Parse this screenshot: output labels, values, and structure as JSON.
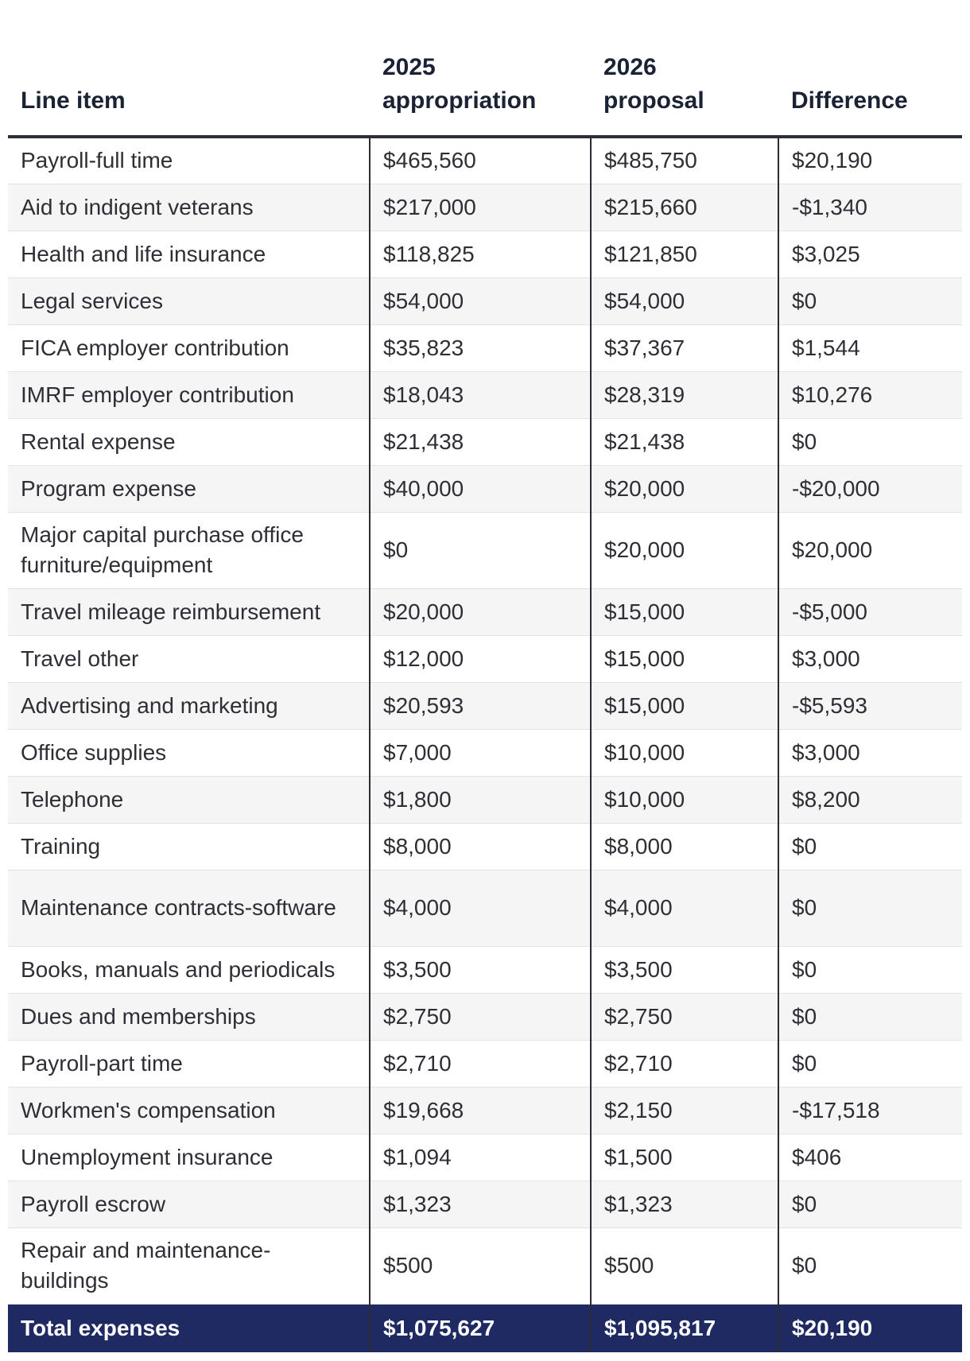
{
  "table": {
    "headers": {
      "line_item": "Line item",
      "appropriation_2025": [
        "2025",
        "appropriation"
      ],
      "proposal_2026": [
        "2026",
        "proposal"
      ],
      "difference": "Difference"
    },
    "rows": [
      {
        "item": "Payroll-full time",
        "a2025": "$465,560",
        "p2026": "$485,750",
        "diff": "$20,190"
      },
      {
        "item": "Aid to indigent veterans",
        "a2025": "$217,000",
        "p2026": "$215,660",
        "diff": "-$1,340"
      },
      {
        "item": "Health and life insurance",
        "a2025": "$118,825",
        "p2026": "$121,850",
        "diff": "$3,025"
      },
      {
        "item": "Legal services",
        "a2025": "$54,000",
        "p2026": "$54,000",
        "diff": "$0"
      },
      {
        "item": "FICA employer contribution",
        "a2025": "$35,823",
        "p2026": "$37,367",
        "diff": "$1,544"
      },
      {
        "item": "IMRF employer contribution",
        "a2025": "$18,043",
        "p2026": "$28,319",
        "diff": "$10,276"
      },
      {
        "item": "Rental expense",
        "a2025": "$21,438",
        "p2026": "$21,438",
        "diff": "$0"
      },
      {
        "item": "Program expense",
        "a2025": "$40,000",
        "p2026": "$20,000",
        "diff": "-$20,000"
      },
      {
        "item": "Major capital purchase office furniture/equipment",
        "a2025": "$0",
        "p2026": "$20,000",
        "diff": "$20,000"
      },
      {
        "item": "Travel mileage reimbursement",
        "a2025": "$20,000",
        "p2026": "$15,000",
        "diff": "-$5,000"
      },
      {
        "item": "Travel other",
        "a2025": "$12,000",
        "p2026": "$15,000",
        "diff": "$3,000"
      },
      {
        "item": "Advertising and marketing",
        "a2025": "$20,593",
        "p2026": "$15,000",
        "diff": "-$5,593"
      },
      {
        "item": "Office supplies",
        "a2025": "$7,000",
        "p2026": "$10,000",
        "diff": "$3,000"
      },
      {
        "item": "Telephone",
        "a2025": "$1,800",
        "p2026": "$10,000",
        "diff": "$8,200"
      },
      {
        "item": "Training",
        "a2025": "$8,000",
        "p2026": "$8,000",
        "diff": "$0"
      },
      {
        "item": "Maintenance contracts-software",
        "a2025": "$4,000",
        "p2026": "$4,000",
        "diff": "$0"
      },
      {
        "item": "Books, manuals and periodicals",
        "a2025": "$3,500",
        "p2026": "$3,500",
        "diff": "$0"
      },
      {
        "item": "Dues and memberships",
        "a2025": "$2,750",
        "p2026": "$2,750",
        "diff": "$0"
      },
      {
        "item": "Payroll-part time",
        "a2025": "$2,710",
        "p2026": "$2,710",
        "diff": "$0"
      },
      {
        "item": "Workmen's compensation",
        "a2025": "$19,668",
        "p2026": "$2,150",
        "diff": "-$17,518"
      },
      {
        "item": "Unemployment insurance",
        "a2025": "$1,094",
        "p2026": "$1,500",
        "diff": "$406"
      },
      {
        "item": "Payroll escrow",
        "a2025": "$1,323",
        "p2026": "$1,323",
        "diff": "$0"
      },
      {
        "item": "Repair and maintenance-buildings",
        "a2025": "$500",
        "p2026": "$500",
        "diff": "$0"
      }
    ],
    "total": {
      "item": "Total expenses",
      "a2025": "$1,075,627",
      "p2026": "$1,095,817",
      "diff": "$20,190"
    },
    "colors": {
      "header_rule": "#2b2f3a",
      "stripe": "#f5f5f6",
      "total_bg": "#1f2a63",
      "total_text": "#ffffff"
    }
  }
}
